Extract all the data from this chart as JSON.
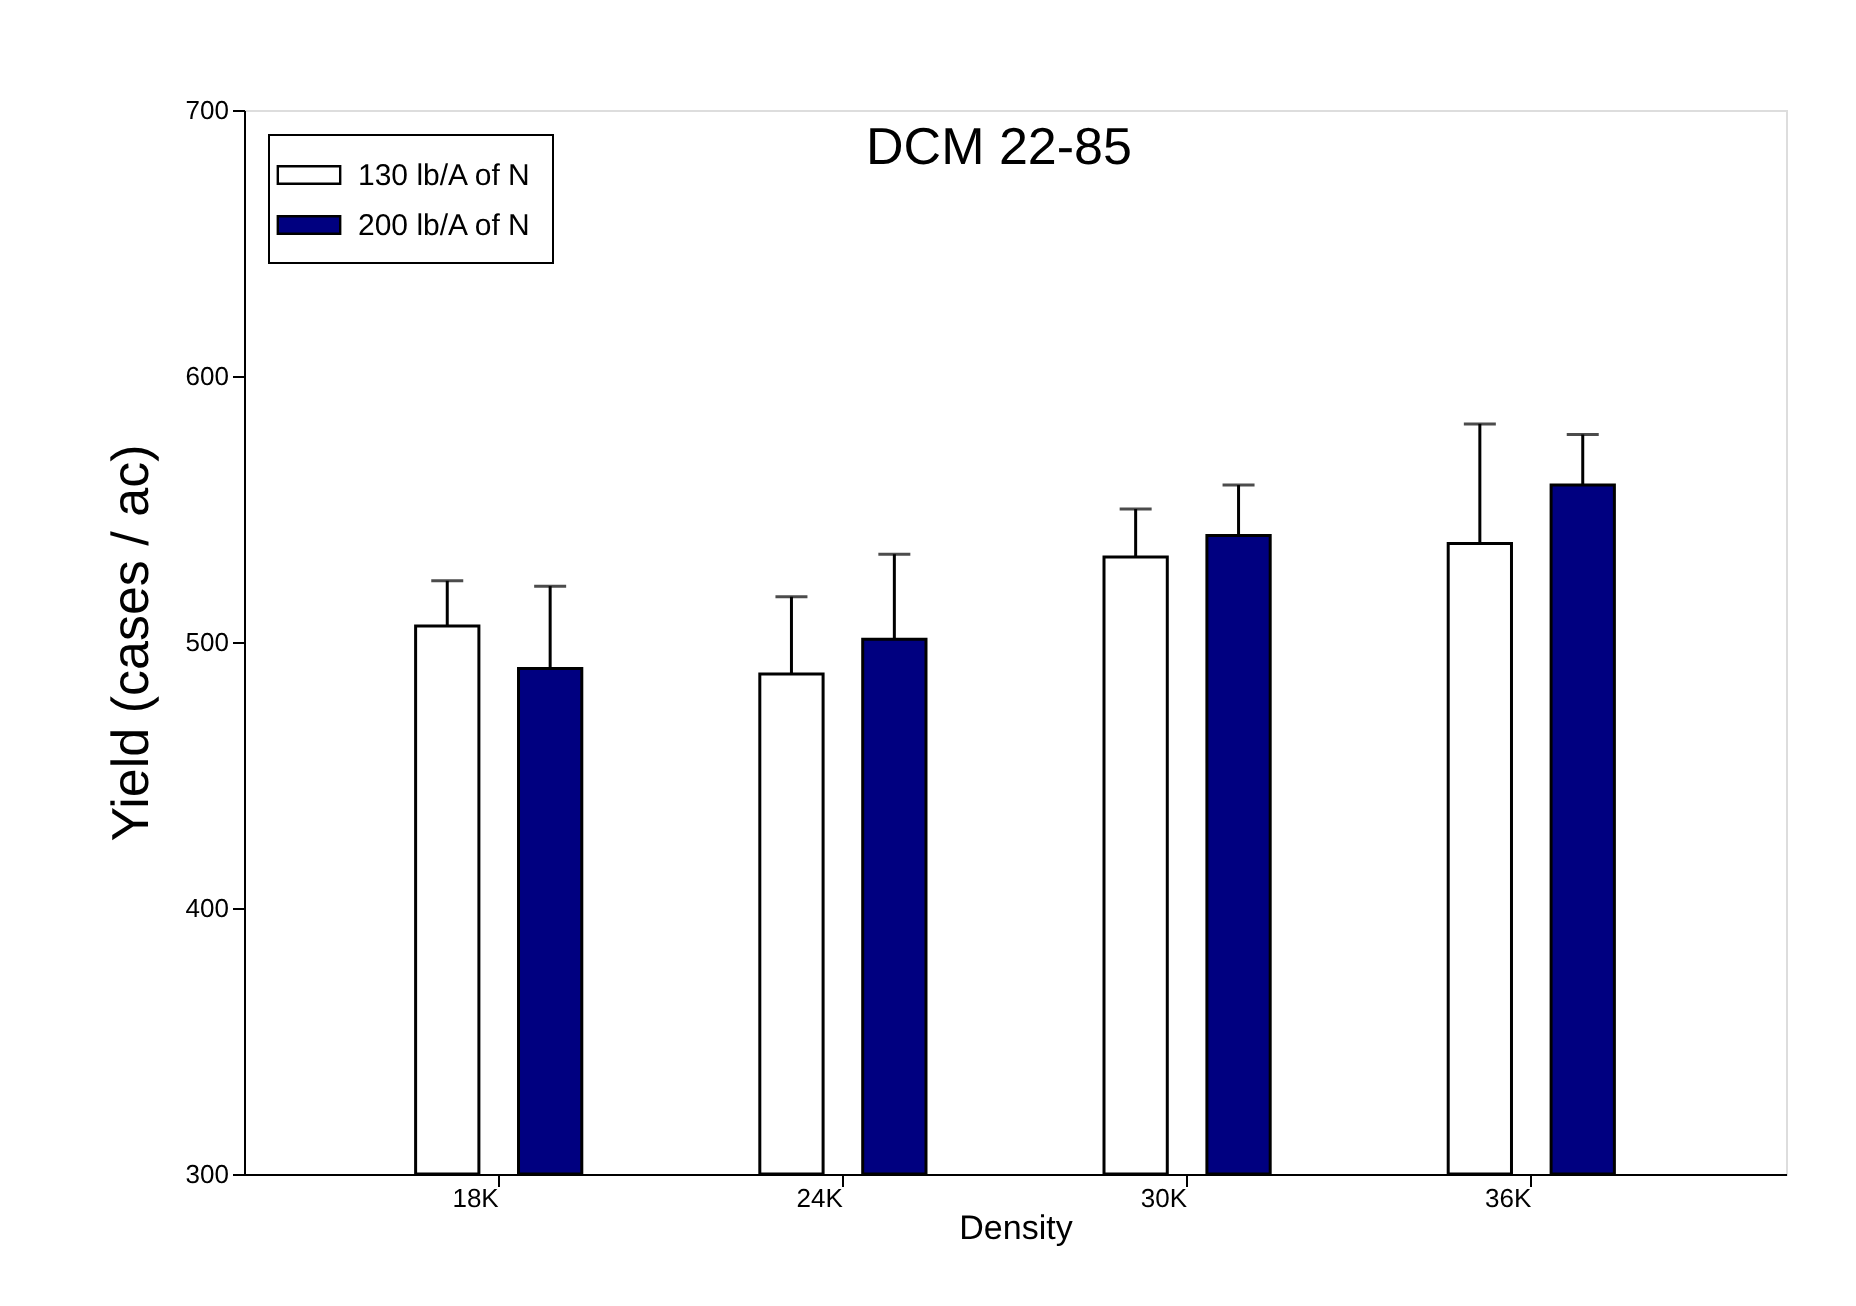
{
  "chart_data": {
    "type": "bar",
    "title": "DCM 22-85",
    "xlabel": "Density",
    "ylabel": "Yield (cases / ac)",
    "categories": [
      "18K",
      "24K",
      "30K",
      "36K"
    ],
    "series": [
      {
        "name": "130 lb/A of N",
        "color": "#ffffff",
        "values": [
          506,
          488,
          532,
          537
        ],
        "errors": [
          17,
          29,
          18,
          45
        ]
      },
      {
        "name": "200 lb/A of N",
        "color": "#000080",
        "values": [
          490,
          501,
          540,
          559
        ],
        "errors": [
          31,
          32,
          19,
          19
        ]
      }
    ],
    "ylim": [
      300,
      700
    ],
    "yticks": [
      300,
      400,
      500,
      600,
      700
    ],
    "grid": false,
    "legend": "top left"
  }
}
